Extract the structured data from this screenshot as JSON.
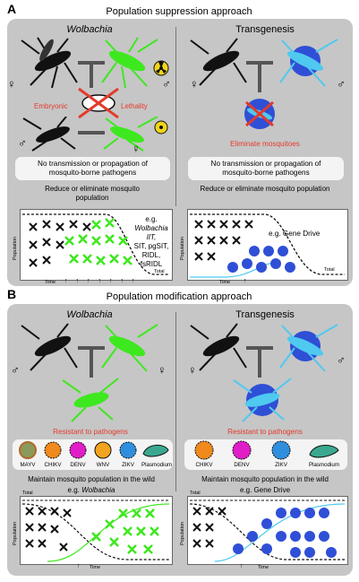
{
  "panel_a": {
    "letter": "A",
    "title": "Population suppression approach",
    "wolbachia": {
      "title": "Wolbachia",
      "embryonic": "Embryonic",
      "lethality": "Lethality",
      "note_line1": "No transmission or propagation of",
      "note_line2": "mosquito-borne pathogens",
      "outcome_line1": "Reduce or eliminate mosquito",
      "outcome_line2": "population",
      "plot_ylabel": "Population",
      "plot_xlabel": "Time",
      "plot_total": "Total",
      "examples": [
        "e.g.",
        "Wolbachia IIT,",
        "SIT, pgSIT,",
        "RIDL,",
        "fsRIDL"
      ]
    },
    "transgenesis": {
      "title": "Transgenesis",
      "eliminate": "Eliminate mosquitoes",
      "note_line1": "No transmission or propagation of",
      "note_line2": "mosquito-borne pathogens",
      "outcome": "Reduce or eliminate mosquito population",
      "plot_ylabel": "Population",
      "plot_xlabel": "Time",
      "plot_total": "Total",
      "example": "e.g. Gene Drive"
    }
  },
  "panel_b": {
    "letter": "B",
    "title": "Population modification approach",
    "wolbachia": {
      "title": "Wolbachia",
      "resistant": "Resistant to pathogens",
      "pathogens": [
        "MAYV",
        "CHIKV",
        "DENV",
        "WNV",
        "ZIKV",
        "Plasmodium"
      ],
      "outcome": "Maintain mosquito population in the wild",
      "example_prefix": "e.g.",
      "example_name": "Wolbachia",
      "plot_ylabel": "Population",
      "plot_xlabel": "Time",
      "plot_total": "Total"
    },
    "transgenesis": {
      "title": "Transgenesis",
      "resistant": "Resistant to pathogens",
      "pathogens": [
        "CHIKV",
        "DENV",
        "ZIKV",
        "Plasmodium"
      ],
      "outcome": "Maintain mosquito population in the wild",
      "example": "e.g. Gene Drive",
      "plot_ylabel": "Population",
      "plot_xlabel": "Time",
      "plot_total": "Total"
    }
  },
  "symbols": {
    "female": "♀",
    "male": "♂"
  },
  "colors": {
    "panel_bg": "#c6c6c6",
    "wild": "#111111",
    "wolbachia_green": "#3ee81f",
    "transgenic_blue": "#4fc9f0",
    "transgenic_disc": "#2f4fd6",
    "warning_red": "#e53a2b",
    "radiation": "#f1d51a"
  }
}
